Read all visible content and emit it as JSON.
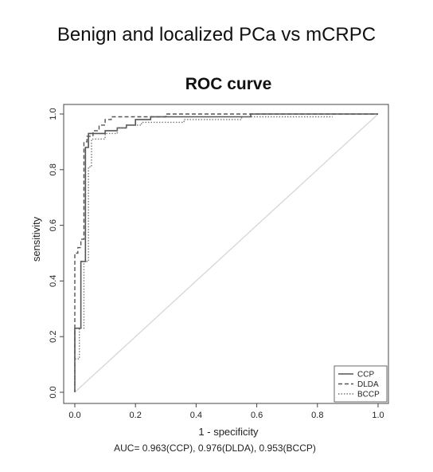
{
  "figure": {
    "title": "Benign and localized PCa vs mCRPC",
    "auc_text": "AUC= 0.963(CCP), 0.976(DLDA), 0.953(BCCP)"
  },
  "chart_data": {
    "type": "line",
    "title": "ROC curve",
    "xlabel": "1 - specificity",
    "ylabel": "sensitivity",
    "xlim": [
      0,
      1
    ],
    "ylim": [
      0,
      1
    ],
    "xticks": [
      "0.0",
      "0.2",
      "0.4",
      "0.6",
      "0.8",
      "1.0"
    ],
    "yticks": [
      "0.0",
      "0.2",
      "0.4",
      "0.6",
      "0.8",
      "1.0"
    ],
    "grid": false,
    "legend_position": "bottom-right",
    "reference_line": {
      "from": [
        0,
        0
      ],
      "to": [
        1,
        1
      ],
      "color": "#d8d8d8"
    },
    "series": [
      {
        "name": "CCP",
        "style": "solid",
        "color": "#555555",
        "points": [
          [
            0.0,
            0.0
          ],
          [
            0.0,
            0.23
          ],
          [
            0.02,
            0.23
          ],
          [
            0.02,
            0.47
          ],
          [
            0.035,
            0.47
          ],
          [
            0.035,
            0.88
          ],
          [
            0.045,
            0.88
          ],
          [
            0.045,
            0.93
          ],
          [
            0.1,
            0.93
          ],
          [
            0.1,
            0.94
          ],
          [
            0.14,
            0.94
          ],
          [
            0.14,
            0.95
          ],
          [
            0.17,
            0.95
          ],
          [
            0.17,
            0.96
          ],
          [
            0.2,
            0.96
          ],
          [
            0.2,
            0.98
          ],
          [
            0.25,
            0.98
          ],
          [
            0.25,
            0.99
          ],
          [
            0.58,
            0.99
          ],
          [
            0.58,
            1.0
          ],
          [
            1.0,
            1.0
          ]
        ]
      },
      {
        "name": "DLDA",
        "style": "dashed",
        "color": "#555555",
        "points": [
          [
            0.0,
            0.0
          ],
          [
            0.0,
            0.5
          ],
          [
            0.01,
            0.5
          ],
          [
            0.01,
            0.52
          ],
          [
            0.02,
            0.52
          ],
          [
            0.02,
            0.55
          ],
          [
            0.03,
            0.55
          ],
          [
            0.03,
            0.9
          ],
          [
            0.04,
            0.9
          ],
          [
            0.04,
            0.92
          ],
          [
            0.06,
            0.92
          ],
          [
            0.06,
            0.94
          ],
          [
            0.08,
            0.94
          ],
          [
            0.08,
            0.96
          ],
          [
            0.1,
            0.96
          ],
          [
            0.1,
            0.98
          ],
          [
            0.12,
            0.98
          ],
          [
            0.12,
            0.99
          ],
          [
            0.3,
            0.99
          ],
          [
            0.3,
            1.0
          ],
          [
            1.0,
            1.0
          ]
        ]
      },
      {
        "name": "BCCP",
        "style": "dotted",
        "color": "#777777",
        "points": [
          [
            0.0,
            0.0
          ],
          [
            0.0,
            0.12
          ],
          [
            0.015,
            0.12
          ],
          [
            0.015,
            0.23
          ],
          [
            0.03,
            0.23
          ],
          [
            0.03,
            0.47
          ],
          [
            0.045,
            0.47
          ],
          [
            0.045,
            0.81
          ],
          [
            0.055,
            0.81
          ],
          [
            0.055,
            0.91
          ],
          [
            0.1,
            0.91
          ],
          [
            0.1,
            0.93
          ],
          [
            0.14,
            0.93
          ],
          [
            0.14,
            0.95
          ],
          [
            0.17,
            0.95
          ],
          [
            0.17,
            0.96
          ],
          [
            0.22,
            0.96
          ],
          [
            0.22,
            0.97
          ],
          [
            0.36,
            0.97
          ],
          [
            0.36,
            0.98
          ],
          [
            0.55,
            0.98
          ],
          [
            0.55,
            0.99
          ],
          [
            0.85,
            0.99
          ]
        ]
      }
    ]
  }
}
